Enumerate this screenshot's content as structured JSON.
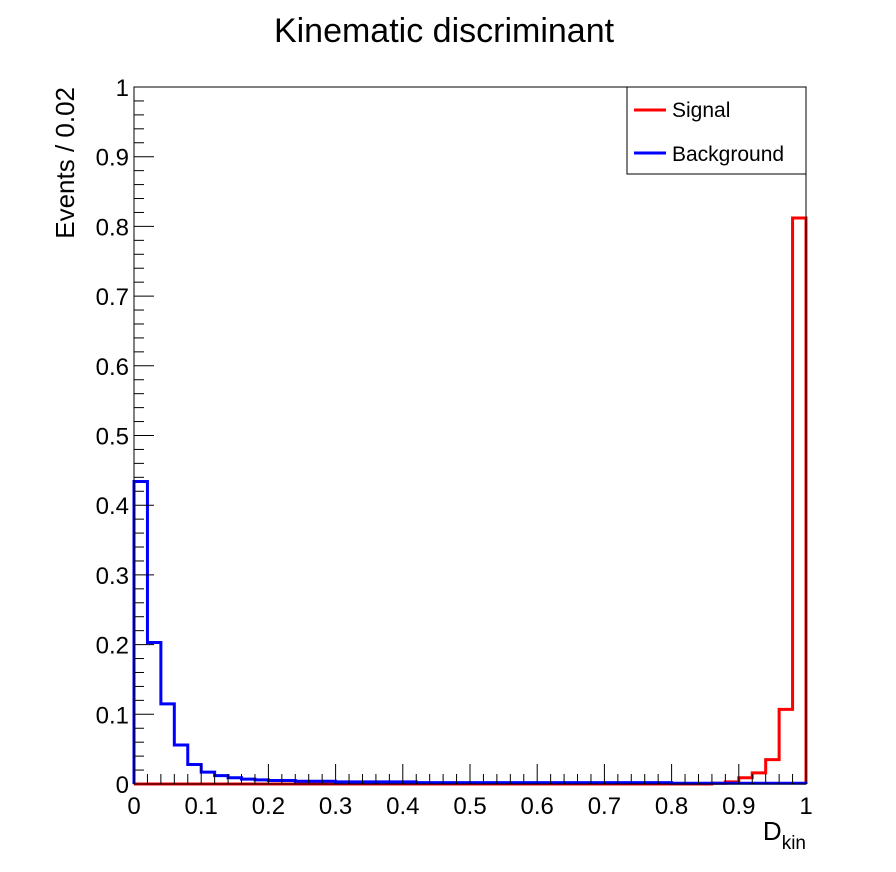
{
  "chart_data": {
    "type": "histogram",
    "title": "Kinematic discriminant",
    "xlabel_main": "D",
    "xlabel_sub": "kin",
    "ylabel": "Events / 0.02",
    "xlim": [
      0,
      1
    ],
    "ylim": [
      0,
      1
    ],
    "bin_width": 0.02,
    "x_ticks": [
      "0",
      "0.1",
      "0.2",
      "0.3",
      "0.4",
      "0.5",
      "0.6",
      "0.7",
      "0.8",
      "0.9",
      "1"
    ],
    "y_ticks": [
      "0",
      "0.1",
      "0.2",
      "0.3",
      "0.4",
      "0.5",
      "0.6",
      "0.7",
      "0.8",
      "0.9",
      "1"
    ],
    "legend_position": "top-right",
    "series": [
      {
        "name": "Signal",
        "color": "#ff0000",
        "values": [
          0,
          0,
          0,
          0,
          0,
          0,
          0,
          0,
          0,
          0,
          0,
          0,
          0,
          0,
          0,
          0,
          0,
          0,
          0,
          0,
          0,
          0,
          0,
          0,
          0,
          0,
          0,
          0,
          0,
          0,
          0,
          0,
          0,
          0,
          0,
          0,
          0,
          0,
          0,
          0,
          0,
          0,
          0,
          0.001,
          0.003,
          0.009,
          0.016,
          0.035,
          0.107,
          0.812
        ]
      },
      {
        "name": "Background",
        "color": "#0000ff",
        "values": [
          0.434,
          0.203,
          0.115,
          0.056,
          0.028,
          0.017,
          0.012,
          0.009,
          0.007,
          0.006,
          0.005,
          0.005,
          0.004,
          0.004,
          0.004,
          0.003,
          0.003,
          0.003,
          0.003,
          0.003,
          0.003,
          0.002,
          0.002,
          0.002,
          0.002,
          0.002,
          0.002,
          0.002,
          0.002,
          0.002,
          0.002,
          0.002,
          0.002,
          0.002,
          0.002,
          0.002,
          0.002,
          0.002,
          0.002,
          0.002,
          0.001,
          0.001,
          0.001,
          0.001,
          0.001,
          0.001,
          0.001,
          0.001,
          0.001,
          0.001
        ]
      }
    ]
  }
}
